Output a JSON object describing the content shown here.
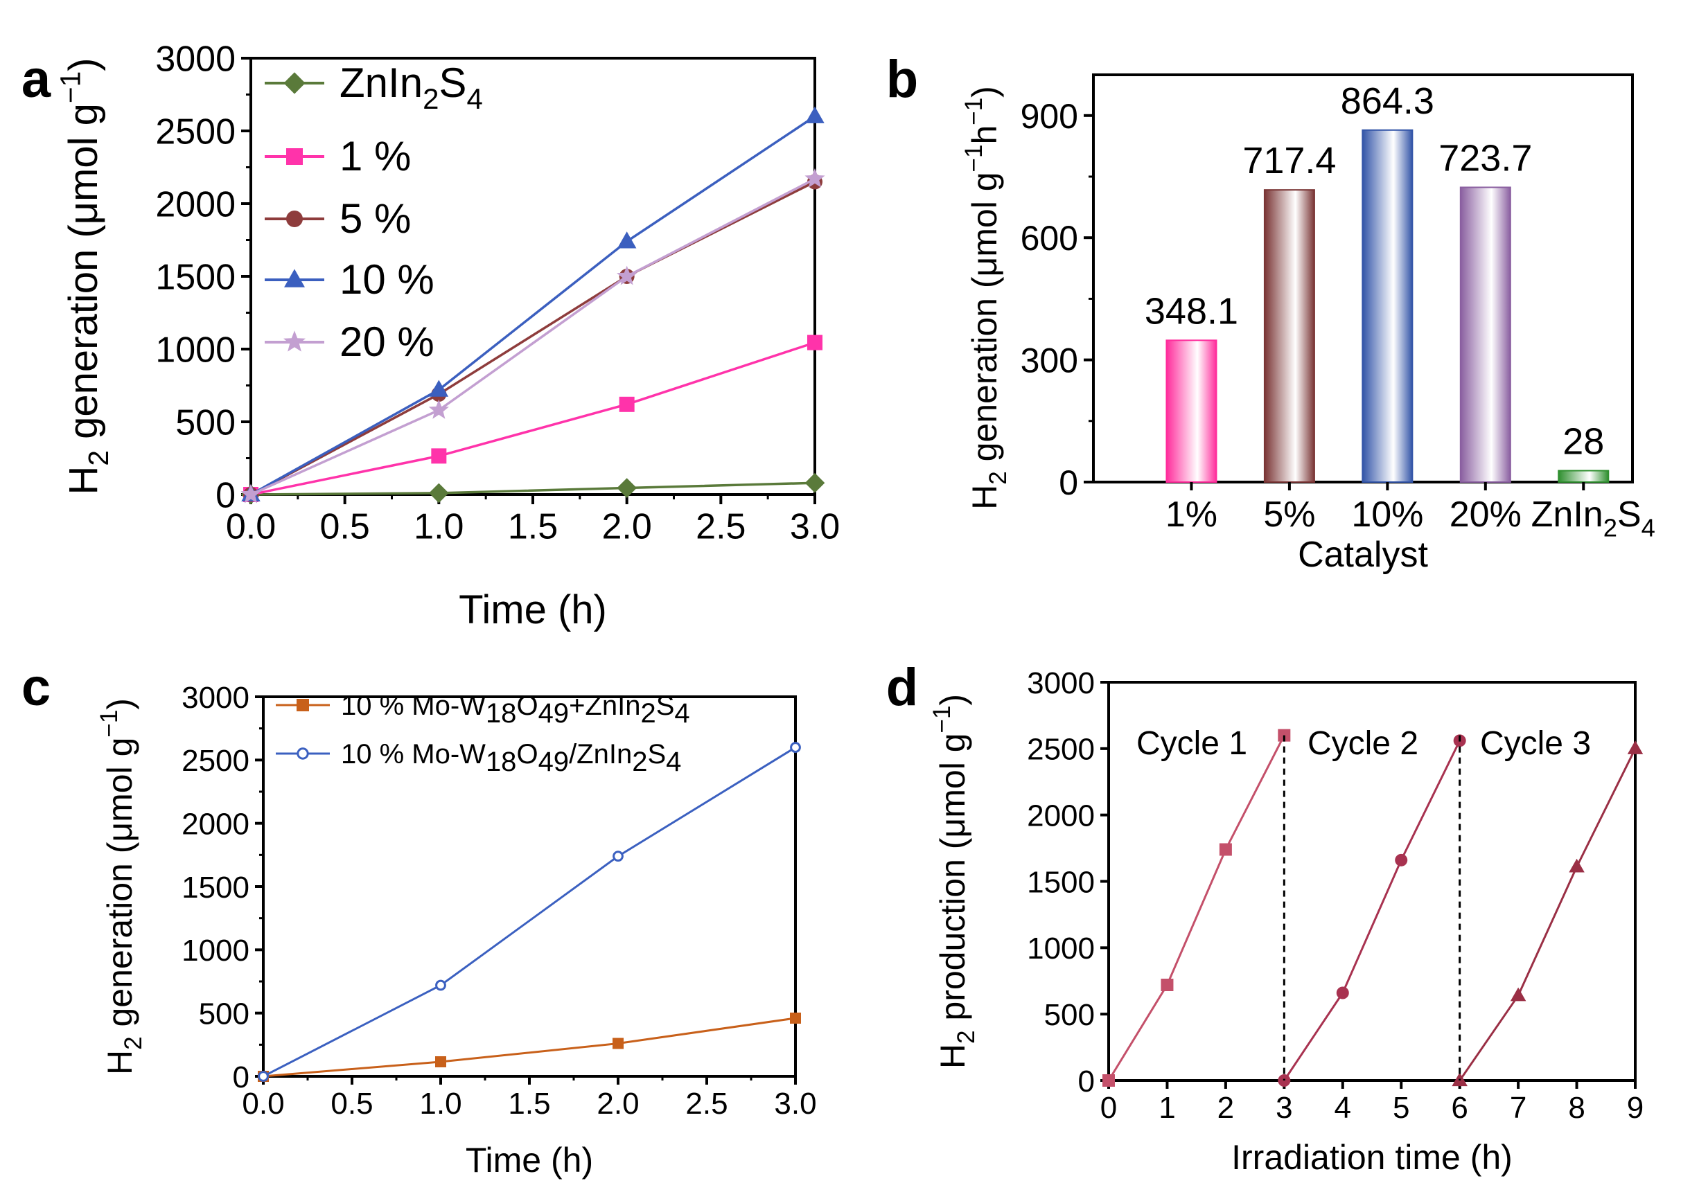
{
  "panels": [
    {
      "letter": "a",
      "chart_data": {
        "type": "line",
        "xlabel": "Time (h)",
        "ylabel": {
          "main": "H",
          "sub": "2",
          "rest": " generation (μmol g",
          "sup": "−1",
          "close": ")"
        },
        "xlim": [
          0,
          3
        ],
        "ylim": [
          0,
          3000
        ],
        "xticks": [
          "0.0",
          "0.5",
          "1.0",
          "1.5",
          "2.0",
          "2.5",
          "3.0"
        ],
        "yticks": [
          "0",
          "500",
          "1000",
          "1500",
          "2000",
          "2500",
          "3000"
        ],
        "legend_position": "top-left",
        "x": [
          0,
          1,
          2,
          3
        ],
        "series": [
          {
            "name": {
              "main": "ZnIn",
              "sub1": "2",
              "mid": "S",
              "sub2": "4"
            },
            "values": [
              0,
              10,
              45,
              80
            ],
            "color": "#5a7a3a",
            "marker": "diamond"
          },
          {
            "name": "1 %",
            "values": [
              0,
              265,
              620,
              1045
            ],
            "color": "#ff33aa",
            "marker": "square"
          },
          {
            "name": "5 %",
            "values": [
              0,
              690,
              1500,
              2150
            ],
            "color": "#8e3c3c",
            "marker": "circle"
          },
          {
            "name": "10 %",
            "values": [
              0,
              720,
              1740,
              2600
            ],
            "color": "#3b5fbf",
            "marker": "triangle"
          },
          {
            "name": "20 %",
            "values": [
              0,
              580,
              1500,
              2170
            ],
            "color": "#c39fd1",
            "marker": "star"
          }
        ]
      }
    },
    {
      "letter": "b",
      "chart_data": {
        "type": "bar",
        "xlabel": "Catalyst",
        "ylabel": {
          "main": "H",
          "sub": "2",
          "rest": " generation (μmol g",
          "sup": "−1",
          "mid": "h",
          "sup2": "−1",
          "close": ")"
        },
        "ylim": [
          0,
          1000
        ],
        "yticks": [
          "0",
          "300",
          "600",
          "900"
        ],
        "categories": [
          "1%",
          "5%",
          "10%",
          "20%",
          {
            "main": "ZnIn",
            "sub1": "2",
            "mid": "S",
            "sub2": "4"
          }
        ],
        "values": [
          348.1,
          717.4,
          864.3,
          723.7,
          28
        ],
        "labels": [
          "348.1",
          "717.4",
          "864.3",
          "723.7",
          "28"
        ],
        "colors": [
          "#ff2d9c",
          "#7a3535",
          "#3355a8",
          "#8a5fa0",
          "#2f8f2f"
        ]
      }
    },
    {
      "letter": "c",
      "chart_data": {
        "type": "line",
        "xlabel": "Time (h)",
        "ylabel": {
          "main": "H",
          "sub": "2",
          "rest": " generation (μmol g",
          "sup": "−1",
          "close": ")"
        },
        "xlim": [
          0,
          3
        ],
        "ylim": [
          0,
          3000
        ],
        "xticks": [
          "0.0",
          "0.5",
          "1.0",
          "1.5",
          "2.0",
          "2.5",
          "3.0"
        ],
        "yticks": [
          "0",
          "500",
          "1000",
          "1500",
          "2000",
          "2500",
          "3000"
        ],
        "legend_position": "top-left",
        "x": [
          0,
          1,
          2,
          3
        ],
        "series": [
          {
            "name": {
              "a": "10 % Mo-W",
              "b": "18",
              "c": "O",
              "d": "49",
              "e": "+ZnIn",
              "f": "2",
              "g": "S",
              "h": "4"
            },
            "values": [
              0,
              115,
              260,
              460
            ],
            "color": "#c8601a",
            "marker": "square"
          },
          {
            "name": {
              "a": "10 % Mo-W",
              "b": "18",
              "c": "O",
              "d": "49",
              "e": "/ZnIn",
              "f": "2",
              "g": "S",
              "h": "4"
            },
            "values": [
              0,
              720,
              1740,
              2600
            ],
            "color": "#3b60c0",
            "marker": "circle-open"
          }
        ]
      }
    },
    {
      "letter": "d",
      "chart_data": {
        "type": "line",
        "xlabel": "Irradiation time (h)",
        "ylabel": {
          "main": "H",
          "sub": "2",
          "rest": " production (μmol g",
          "sup": "−1",
          "close": ")"
        },
        "xlim": [
          0,
          9
        ],
        "ylim": [
          0,
          3000
        ],
        "xticks": [
          "0",
          "1",
          "2",
          "3",
          "4",
          "5",
          "6",
          "7",
          "8",
          "9"
        ],
        "yticks": [
          "0",
          "500",
          "1000",
          "1500",
          "2000",
          "2500",
          "3000"
        ],
        "dividers_x": [
          3,
          6
        ],
        "series": [
          {
            "name": "Cycle 1",
            "x": [
              0,
              1,
              2,
              3
            ],
            "values": [
              0,
              720,
              1740,
              2600
            ],
            "color": "#c4506a",
            "marker": "square"
          },
          {
            "name": "Cycle 2",
            "x": [
              3,
              4,
              5,
              6
            ],
            "values": [
              0,
              660,
              1660,
              2560
            ],
            "color": "#a83250",
            "marker": "circle"
          },
          {
            "name": "Cycle 3",
            "x": [
              6,
              7,
              8,
              9
            ],
            "values": [
              0,
              640,
              1610,
              2500
            ],
            "color": "#9a2f45",
            "marker": "triangle"
          }
        ]
      }
    }
  ]
}
